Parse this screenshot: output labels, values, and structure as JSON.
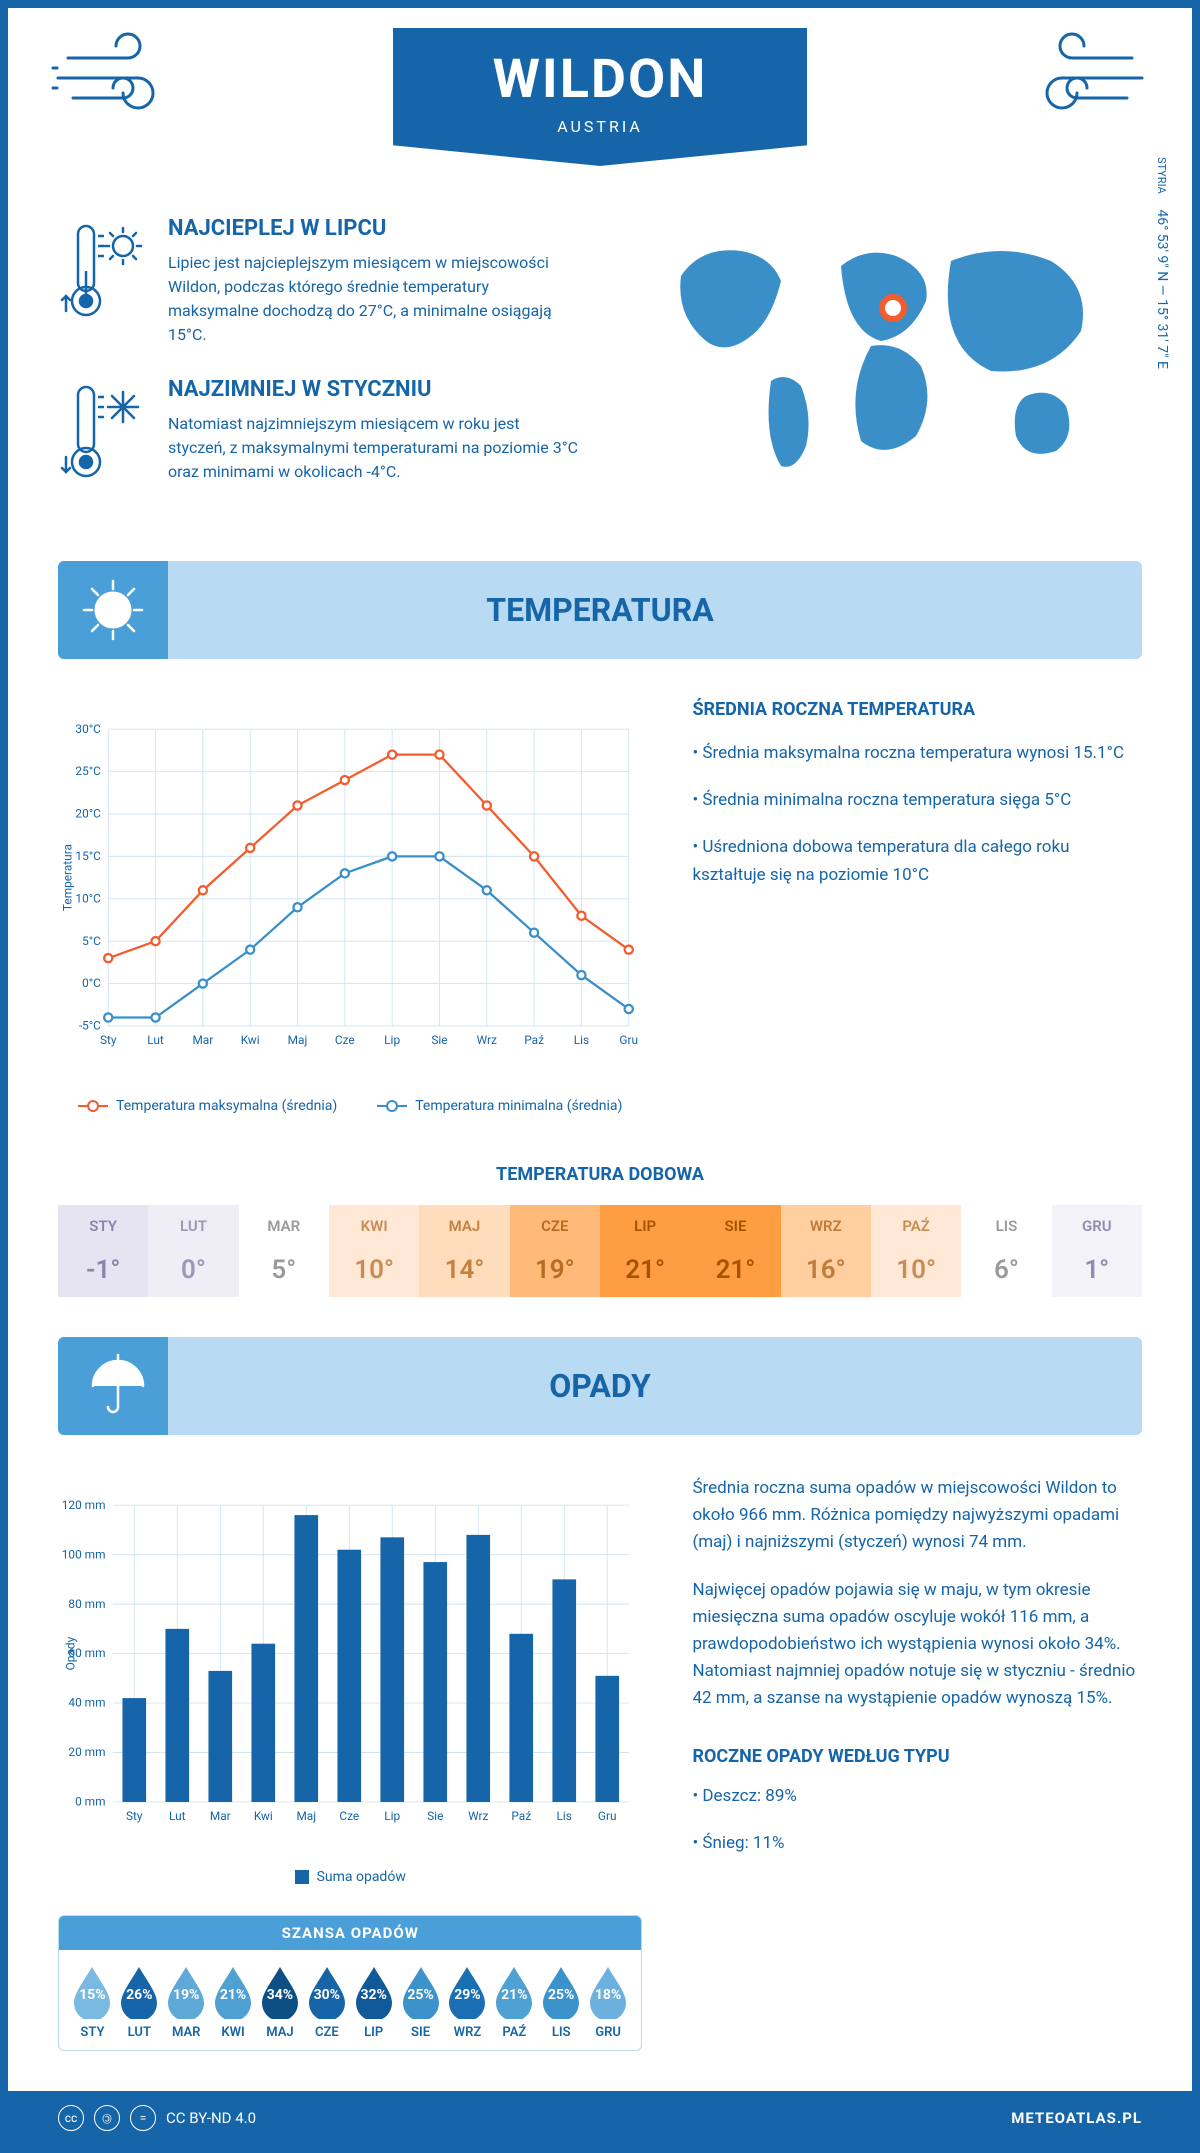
{
  "header": {
    "title": "WILDON",
    "subtitle": "AUSTRIA"
  },
  "coords": {
    "text": "46° 53' 9\" N — 15° 31' 7\" E",
    "region": "STYRIA"
  },
  "info_hot": {
    "title": "NAJCIEPLEJ W LIPCU",
    "body": "Lipiec jest najcieplejszym miesiącem w miejscowości Wildon, podczas którego średnie temperatury maksymalne dochodzą do 27°C, a minimalne osiągają 15°C."
  },
  "info_cold": {
    "title": "NAJZIMNIEJ W STYCZNIU",
    "body": "Natomiast najzimniejszym miesiącem w roku jest styczeń, z maksymalnymi temperaturami na poziomie 3°C oraz minimami w okolicach -4°C."
  },
  "section_temp": "TEMPERATURA",
  "section_precip": "OPADY",
  "temp_chart": {
    "months": [
      "Sty",
      "Lut",
      "Mar",
      "Kwi",
      "Maj",
      "Cze",
      "Lip",
      "Sie",
      "Wrz",
      "Paź",
      "Lis",
      "Gru"
    ],
    "max": [
      3,
      5,
      11,
      16,
      21,
      24,
      27,
      27,
      21,
      15,
      8,
      4
    ],
    "min": [
      -4,
      -4,
      0,
      4,
      9,
      13,
      15,
      15,
      11,
      6,
      1,
      -3
    ],
    "ylim": [
      -5,
      30
    ],
    "ytick_step": 5,
    "y_axis_label": "Temperatura",
    "max_color": "#f25c2e",
    "min_color": "#3b8fc9",
    "grid_color": "#d0e4f2",
    "legend_max": "Temperatura maksymalna (średnia)",
    "legend_min": "Temperatura minimalna (średnia)"
  },
  "temp_text": {
    "heading": "ŚREDNIA ROCZNA TEMPERATURA",
    "p1": "• Średnia maksymalna roczna temperatura wynosi 15.1°C",
    "p2": "• Średnia minimalna roczna temperatura sięga 5°C",
    "p3": "• Uśredniona dobowa temperatura dla całego roku kształtuje się na poziomie 10°C"
  },
  "daily": {
    "title": "TEMPERATURA DOBOWA",
    "months": [
      "STY",
      "LUT",
      "MAR",
      "KWI",
      "MAJ",
      "CZE",
      "LIP",
      "SIE",
      "WRZ",
      "PAŹ",
      "LIS",
      "GRU"
    ],
    "values": [
      "-1°",
      "0°",
      "5°",
      "10°",
      "14°",
      "19°",
      "21°",
      "21°",
      "16°",
      "10°",
      "6°",
      "1°"
    ],
    "colors": [
      "#e7e4f2",
      "#efeef6",
      "#ffffff",
      "#ffe9d6",
      "#ffdcbc",
      "#ffba7a",
      "#ff9d42",
      "#ff9d42",
      "#ffcfa0",
      "#ffe9d6",
      "#ffffff",
      "#f3f2f8"
    ],
    "text_colors": [
      "#8b86a8",
      "#9c97b6",
      "#9a9a9a",
      "#c98c55",
      "#c6813f",
      "#b86b22",
      "#a65300",
      "#a65300",
      "#c07c3a",
      "#c98c55",
      "#9a9a9a",
      "#918caf"
    ]
  },
  "precip_chart": {
    "months": [
      "Sty",
      "Lut",
      "Mar",
      "Kwi",
      "Maj",
      "Cze",
      "Lip",
      "Sie",
      "Wrz",
      "Paź",
      "Lis",
      "Gru"
    ],
    "values": [
      42,
      70,
      53,
      64,
      116,
      102,
      107,
      97,
      108,
      68,
      90,
      51
    ],
    "ylim": [
      0,
      120
    ],
    "ytick_step": 20,
    "bar_color": "#1565a8",
    "grid_color": "#d0e4f2",
    "y_axis_label": "Opady",
    "legend": "Suma opadów"
  },
  "precip_text": {
    "p1": "Średnia roczna suma opadów w miejscowości Wildon to około 966 mm. Różnica pomiędzy najwyższymi opadami (maj) i najniższymi (styczeń) wynosi 74 mm.",
    "p2": "Najwięcej opadów pojawia się w maju, w tym okresie miesięczna suma opadów oscyluje wokół 116 mm, a prawdopodobieństwo ich wystąpienia wynosi około 34%. Natomiast najmniej opadów notuje się w styczniu - średnio 42 mm, a szanse na wystąpienie opadów wynoszą 15%.",
    "type_heading": "ROCZNE OPADY WEDŁUG TYPU",
    "type1": "• Deszcz: 89%",
    "type2": "• Śnieg: 11%"
  },
  "chance": {
    "title": "SZANSA OPADÓW",
    "months": [
      "STY",
      "LUT",
      "MAR",
      "KWI",
      "MAJ",
      "CZE",
      "LIP",
      "SIE",
      "WRZ",
      "PAŹ",
      "LIS",
      "GRU"
    ],
    "values": [
      "15%",
      "26%",
      "19%",
      "21%",
      "34%",
      "30%",
      "32%",
      "25%",
      "29%",
      "21%",
      "25%",
      "18%"
    ],
    "colors": [
      "#79b9e2",
      "#1565a8",
      "#5fa9d9",
      "#4fa0d3",
      "#0d4f85",
      "#1565a8",
      "#12599a",
      "#3c93cb",
      "#1a6fb4",
      "#4fa0d3",
      "#3c93cb",
      "#6cb1dd"
    ]
  },
  "footer": {
    "license": "CC BY-ND 4.0",
    "site": "METEOATLAS.PL"
  }
}
